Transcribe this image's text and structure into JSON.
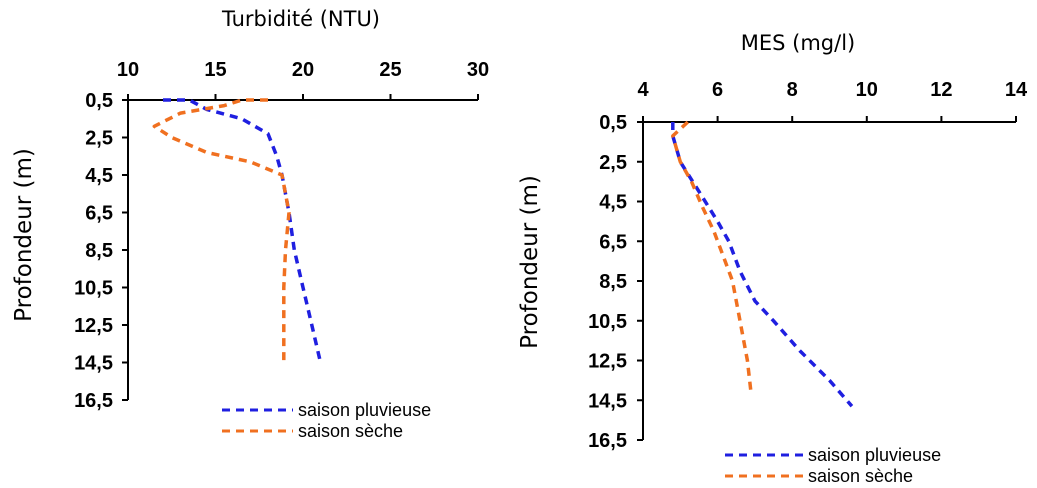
{
  "chart_data": [
    {
      "type": "line",
      "title": "Turbidité (NTU)",
      "xlabel": "Turbidité (NTU)",
      "ylabel": "Profondeur (m)",
      "xlim": [
        10,
        30
      ],
      "ylim": [
        0.5,
        16.5
      ],
      "x_axis_position": "top",
      "y_axis_reversed": true,
      "xticks": [
        "10",
        "15",
        "20",
        "25",
        "30"
      ],
      "yticks": [
        "0,5",
        "2,5",
        "4,5",
        "6,5",
        "8,5",
        "10,5",
        "12,5",
        "14,5",
        "16,5"
      ],
      "legend_position": "bottom-right",
      "series": [
        {
          "name": "saison pluvieuse",
          "color": "#1f1fe0",
          "style": "dashed",
          "points": [
            [
              12,
              0.5
            ],
            [
              13.5,
              0.5
            ],
            [
              14.5,
              1.0
            ],
            [
              16.5,
              1.5
            ],
            [
              18,
              2.3
            ],
            [
              18.5,
              3.5
            ],
            [
              18.8,
              4.5
            ],
            [
              19.2,
              6.5
            ],
            [
              19.5,
              8.5
            ],
            [
              20,
              10.5
            ],
            [
              20.5,
              12.5
            ],
            [
              21,
              14.5
            ]
          ]
        },
        {
          "name": "saison sèche",
          "color": "#f07020",
          "style": "dashed",
          "points": [
            [
              18,
              0.5
            ],
            [
              16.5,
              0.5
            ],
            [
              15.5,
              0.8
            ],
            [
              13,
              1.2
            ],
            [
              11.5,
              1.9
            ],
            [
              12.5,
              2.5
            ],
            [
              14.5,
              3.3
            ],
            [
              17,
              3.8
            ],
            [
              18.8,
              4.5
            ],
            [
              19.2,
              6.5
            ],
            [
              19,
              8.5
            ],
            [
              18.9,
              10.5
            ],
            [
              18.9,
              12.5
            ],
            [
              18.9,
              14.5
            ]
          ]
        }
      ]
    },
    {
      "type": "line",
      "title": "MES (mg/l)",
      "xlabel": "MES (mg/l)",
      "ylabel": "Profondeur (m)",
      "xlim": [
        4,
        14
      ],
      "ylim": [
        0.5,
        16.5
      ],
      "x_axis_position": "top",
      "y_axis_reversed": true,
      "xticks": [
        "4",
        "6",
        "8",
        "10",
        "12",
        "14"
      ],
      "yticks": [
        "0,5",
        "2,5",
        "4,5",
        "6,5",
        "8,5",
        "10,5",
        "12,5",
        "14,5",
        "16,5"
      ],
      "legend_position": "bottom-right",
      "series": [
        {
          "name": "saison pluvieuse",
          "color": "#1f1fe0",
          "style": "dashed",
          "points": [
            [
              4.8,
              0.5
            ],
            [
              4.8,
              1.2
            ],
            [
              5.0,
              2.5
            ],
            [
              5.5,
              4.0
            ],
            [
              6.0,
              5.5
            ],
            [
              6.3,
              6.5
            ],
            [
              6.6,
              8.0
            ],
            [
              7.0,
              9.5
            ],
            [
              7.5,
              10.5
            ],
            [
              8.2,
              12.0
            ],
            [
              9.0,
              13.5
            ],
            [
              9.6,
              14.8
            ]
          ]
        },
        {
          "name": "saison sèche",
          "color": "#f07020",
          "style": "dashed",
          "points": [
            [
              5.2,
              0.5
            ],
            [
              4.8,
              1.2
            ],
            [
              5.0,
              2.5
            ],
            [
              5.3,
              3.5
            ],
            [
              5.6,
              4.8
            ],
            [
              5.9,
              6.0
            ],
            [
              6.2,
              7.5
            ],
            [
              6.4,
              8.5
            ],
            [
              6.6,
              10.5
            ],
            [
              6.8,
              12.5
            ],
            [
              6.9,
              14.2
            ]
          ]
        }
      ]
    }
  ]
}
